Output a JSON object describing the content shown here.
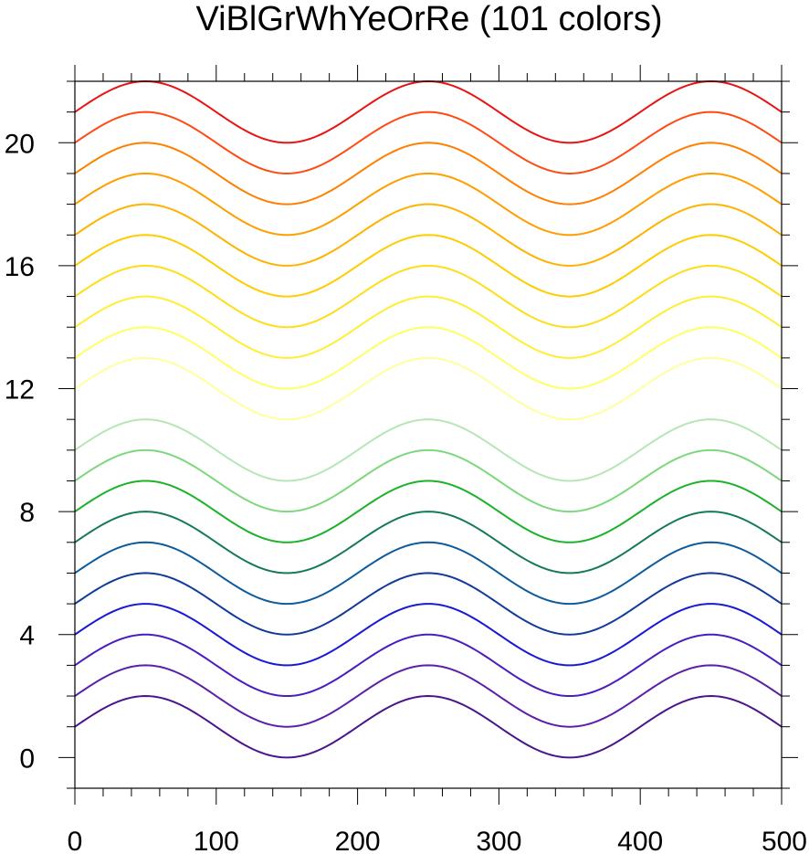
{
  "chart_data": {
    "type": "line",
    "title": "ViBlGrWhYeOrRe (101 colors)",
    "xlabel": "",
    "ylabel": "",
    "xlim": [
      0,
      500
    ],
    "ylim": [
      -1,
      22
    ],
    "x_ticks": [
      0,
      100,
      200,
      300,
      400,
      500
    ],
    "y_ticks": [
      0,
      4,
      8,
      12,
      16,
      20
    ],
    "x_minor_step": 20,
    "y_minor_step": 1,
    "curve_form": "y = offset + sin(2*pi*(x-0)/200)",
    "period": 200,
    "amplitude": 1,
    "x_start": 0,
    "x_end": 500,
    "series": [
      {
        "offset": 1,
        "color": "#4a148c"
      },
      {
        "offset": 2,
        "color": "#5b1fa8"
      },
      {
        "offset": 3,
        "color": "#4b1cc0"
      },
      {
        "offset": 4,
        "color": "#1a1ad6"
      },
      {
        "offset": 5,
        "color": "#123a9a"
      },
      {
        "offset": 6,
        "color": "#0e5b9c"
      },
      {
        "offset": 7,
        "color": "#157a5a"
      },
      {
        "offset": 8,
        "color": "#1db22a"
      },
      {
        "offset": 9,
        "color": "#7dd87d"
      },
      {
        "offset": 10,
        "color": "#b5e6b5"
      },
      {
        "offset": 12,
        "color": "#ffff9e"
      },
      {
        "offset": 13,
        "color": "#ffff66"
      },
      {
        "offset": 14,
        "color": "#ffee33"
      },
      {
        "offset": 15,
        "color": "#ffdd1a"
      },
      {
        "offset": 16,
        "color": "#ffcc00"
      },
      {
        "offset": 17,
        "color": "#ffb300"
      },
      {
        "offset": 18,
        "color": "#ff9e00"
      },
      {
        "offset": 19,
        "color": "#ff7f00"
      },
      {
        "offset": 20,
        "color": "#ff4a14"
      },
      {
        "offset": 21,
        "color": "#e81414"
      }
    ]
  }
}
